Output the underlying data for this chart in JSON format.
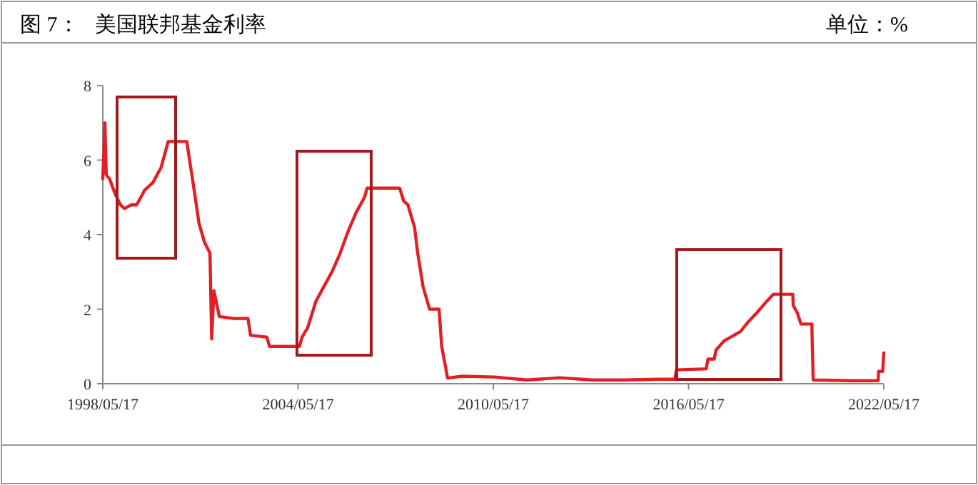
{
  "chart_data": {
    "type": "line",
    "title": "图 7：   美国联邦基金利率",
    "annotations": [
      "单位：%"
    ],
    "x": [
      "1998-05-17",
      "1998-06-10",
      "1998-06-25",
      "1998-08-01",
      "1998-10-01",
      "1998-12-01",
      "1999-01-15",
      "1999-04-01",
      "1999-06-01",
      "1999-09-01",
      "1999-12-01",
      "2000-01-15",
      "2000-03-01",
      "2000-05-20",
      "2000-07-01",
      "2000-10-01",
      "2000-12-15",
      "2001-01-15",
      "2001-03-01",
      "2001-05-01",
      "2001-07-01",
      "2001-09-01",
      "2001-09-20",
      "2001-10-15",
      "2001-12-15",
      "2002-06-01",
      "2002-11-01",
      "2002-12-01",
      "2003-06-01",
      "2003-07-01",
      "2004-06-01",
      "2004-07-01",
      "2004-09-01",
      "2004-12-01",
      "2005-03-01",
      "2005-06-01",
      "2005-09-01",
      "2005-12-01",
      "2006-03-01",
      "2006-06-01",
      "2006-07-01",
      "2007-01-01",
      "2007-07-01",
      "2007-08-15",
      "2007-10-01",
      "2007-12-15",
      "2008-01-20",
      "2008-03-20",
      "2008-06-01",
      "2008-09-15",
      "2008-10-15",
      "2008-12-01",
      "2008-12-20",
      "2009-06-01",
      "2010-06-01",
      "2011-06-01",
      "2012-06-01",
      "2013-06-01",
      "2014-06-01",
      "2015-06-01",
      "2015-12-15",
      "2016-01-01",
      "2016-12-01",
      "2016-12-20",
      "2017-03-01",
      "2017-03-20",
      "2017-06-20",
      "2017-12-20",
      "2018-03-25",
      "2018-06-20",
      "2018-09-30",
      "2018-12-25",
      "2019-07-31",
      "2019-08-05",
      "2019-09-20",
      "2019-10-31",
      "2020-03-01",
      "2020-03-05",
      "2020-03-16",
      "2021-06-01",
      "2022-03-15",
      "2022-03-20",
      "2022-05-05",
      "2022-05-17"
    ],
    "series": [
      {
        "color": "#e31e24",
        "values": [
          5.5,
          7.0,
          5.6,
          5.5,
          5.1,
          4.8,
          4.7,
          4.8,
          4.8,
          5.2,
          5.4,
          5.6,
          5.8,
          6.5,
          6.5,
          6.5,
          6.5,
          6.0,
          5.3,
          4.3,
          3.8,
          3.5,
          1.2,
          2.5,
          1.8,
          1.75,
          1.75,
          1.3,
          1.25,
          1.0,
          1.0,
          1.25,
          1.5,
          2.2,
          2.6,
          3.0,
          3.5,
          4.1,
          4.6,
          5.0,
          5.25,
          5.25,
          5.25,
          4.9,
          4.8,
          4.2,
          3.5,
          2.6,
          2.0,
          2.0,
          1.0,
          0.4,
          0.15,
          0.2,
          0.18,
          0.1,
          0.16,
          0.1,
          0.1,
          0.12,
          0.12,
          0.37,
          0.4,
          0.66,
          0.66,
          0.9,
          1.15,
          1.4,
          1.68,
          1.9,
          2.18,
          2.4,
          2.4,
          2.1,
          1.9,
          1.6,
          1.6,
          1.1,
          0.1,
          0.08,
          0.08,
          0.33,
          0.33,
          0.83
        ]
      }
    ],
    "xlim": [
      "1998-05-17",
      "2022-05-17"
    ],
    "xticks": [
      {
        "value": "1998-05-17",
        "label": "1998/05/17"
      },
      {
        "value": "2004-05-17",
        "label": "2004/05/17"
      },
      {
        "value": "2010-05-17",
        "label": "2010/05/17"
      },
      {
        "value": "2016-05-17",
        "label": "2016/05/17"
      },
      {
        "value": "2022-05-17",
        "label": "2022/05/17"
      }
    ],
    "ylim": [
      0,
      8
    ],
    "yticks": [
      0,
      2,
      4,
      6,
      8
    ],
    "grid": false,
    "line_style": "solid"
  }
}
